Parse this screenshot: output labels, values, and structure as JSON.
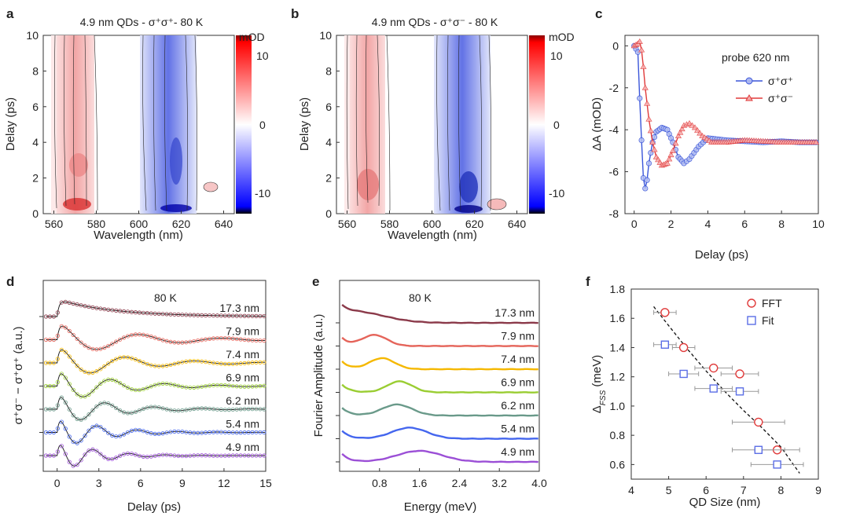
{
  "panels": {
    "a": {
      "letter": "a",
      "title": "4.9 nm QDs - σ⁺σ⁺- 80 K",
      "xlabel": "Wavelength (nm)",
      "ylabel": "Delay (ps)",
      "xticks": [
        "560",
        "580",
        "600",
        "620",
        "640"
      ],
      "yticks": [
        "0",
        "2",
        "4",
        "6",
        "8",
        "10"
      ],
      "colorbar": {
        "unit": "mOD",
        "ticks": [
          "10",
          "0",
          "-10"
        ]
      }
    },
    "b": {
      "letter": "b",
      "title": "4.9 nm QDs - σ⁺σ⁻ - 80 K",
      "xlabel": "Wavelength (nm)",
      "ylabel": "Delay (ps)",
      "xticks": [
        "560",
        "580",
        "600",
        "620",
        "640"
      ],
      "yticks": [
        "0",
        "2",
        "4",
        "6",
        "8",
        "10"
      ],
      "colorbar": {
        "unit": "mOD",
        "ticks": [
          "10",
          "0",
          "-10"
        ]
      }
    },
    "c": {
      "letter": "c",
      "xlabel": "Delay (ps)",
      "ylabel": "ΔA (mOD)",
      "annotation": "probe 620 nm",
      "xticks": [
        "0",
        "2",
        "4",
        "6",
        "8",
        "10"
      ],
      "yticks": [
        "0",
        "-2",
        "-4",
        "-6",
        "-8"
      ],
      "legend": [
        "σ⁺σ⁺",
        "σ⁺σ⁻"
      ]
    },
    "d": {
      "letter": "d",
      "xlabel": "Delay (ps)",
      "ylabel": "σ⁺σ⁻ − σ⁺σ⁺ (a.u.)",
      "annotation": "80 K",
      "xticks": [
        "0",
        "3",
        "6",
        "9",
        "12",
        "15"
      ],
      "sizes": [
        "17.3 nm",
        "7.9 nm",
        "7.4 nm",
        "6.9 nm",
        "6.2 nm",
        "5.4 nm",
        "4.9 nm"
      ]
    },
    "e": {
      "letter": "e",
      "xlabel": "Energy (meV)",
      "ylabel": "Fourier Amplitude (a.u.)",
      "annotation": "80 K",
      "xticks": [
        "0.8",
        "1.6",
        "2.4",
        "3.2",
        "4.0"
      ],
      "sizes": [
        "17.3 nm",
        "7.9 nm",
        "7.4 nm",
        "6.9 nm",
        "6.2 nm",
        "5.4 nm",
        "4.9 nm"
      ]
    },
    "f": {
      "letter": "f",
      "xlabel": "QD Size (nm)",
      "ylabel": "Δ",
      "ylabel_sub": "FSS",
      "ylabel_unit": " (meV)",
      "xticks": [
        "4",
        "5",
        "6",
        "7",
        "8",
        "9"
      ],
      "yticks": [
        "0.6",
        "0.8",
        "1.0",
        "1.2",
        "1.4",
        "1.6",
        "1.8"
      ],
      "legend": [
        "FFT",
        "Fit"
      ]
    }
  },
  "colors": {
    "sigma_pp": "#3a55d9",
    "sigma_pm": "#e03a3a",
    "series": [
      "#8b3a4a",
      "#e5645a",
      "#f5b800",
      "#9acd32",
      "#6a9a8a",
      "#4466ee",
      "#9b4fd6"
    ]
  },
  "chart_data": [
    {
      "type": "heatmap",
      "panel": "a",
      "x_range": [
        555,
        645
      ],
      "y_range": [
        0,
        10
      ],
      "zlim": [
        -14,
        14
      ]
    },
    {
      "type": "heatmap",
      "panel": "b",
      "x_range": [
        555,
        645
      ],
      "y_range": [
        0,
        10
      ],
      "zlim": [
        -14,
        14
      ]
    },
    {
      "type": "line",
      "panel": "c",
      "xlim": [
        -0.5,
        10
      ],
      "ylim": [
        -8,
        0.5
      ],
      "series": [
        {
          "name": "σ⁺σ⁺",
          "x": [
            0,
            0.2,
            0.3,
            0.4,
            0.5,
            0.6,
            0.7,
            0.8,
            1.0,
            1.2,
            1.5,
            1.8,
            2.1,
            2.4,
            2.7,
            3.0,
            3.5,
            4,
            5,
            6,
            7,
            8,
            9,
            10
          ],
          "y": [
            0,
            -0.3,
            -2.5,
            -4.5,
            -6.3,
            -6.8,
            -6.4,
            -5.6,
            -4.6,
            -4.1,
            -3.9,
            -4.0,
            -4.6,
            -5.3,
            -5.6,
            -5.4,
            -4.8,
            -4.4,
            -4.5,
            -4.55,
            -4.6,
            -4.55,
            -4.6,
            -4.6
          ]
        },
        {
          "name": "σ⁺σ⁻",
          "x": [
            0,
            0.2,
            0.3,
            0.4,
            0.5,
            0.6,
            0.8,
            1.0,
            1.2,
            1.5,
            1.8,
            2.1,
            2.4,
            2.7,
            3.0,
            3.3,
            3.7,
            4.2,
            5,
            6,
            7,
            8,
            9,
            10
          ],
          "y": [
            0,
            0.1,
            0.2,
            -0.2,
            -1.0,
            -2.0,
            -3.5,
            -4.6,
            -5.3,
            -5.7,
            -5.6,
            -5.0,
            -4.3,
            -3.8,
            -3.7,
            -3.9,
            -4.3,
            -4.6,
            -4.6,
            -4.5,
            -4.55,
            -4.6,
            -4.6,
            -4.6
          ]
        }
      ]
    },
    {
      "type": "line",
      "panel": "d",
      "xlim": [
        -1,
        15
      ],
      "series": [
        {
          "name": "17.3 nm",
          "offset": 6,
          "amp": 0.3,
          "decay": 3.0,
          "period": 0,
          "phase": 0
        },
        {
          "name": "7.9 nm",
          "offset": 5,
          "amp": 0.45,
          "decay": 5.0,
          "period": 6.0,
          "phase": 0
        },
        {
          "name": "7.4 nm",
          "offset": 4,
          "amp": 0.45,
          "decay": 4.5,
          "period": 5.0,
          "phase": 0
        },
        {
          "name": "6.9 nm",
          "offset": 3,
          "amp": 0.45,
          "decay": 4.0,
          "period": 3.9,
          "phase": 0
        },
        {
          "name": "6.2 nm",
          "offset": 2,
          "amp": 0.45,
          "decay": 3.5,
          "period": 3.5,
          "phase": 0
        },
        {
          "name": "5.4 nm",
          "offset": 1,
          "amp": 0.45,
          "decay": 3.0,
          "period": 2.9,
          "phase": 0
        },
        {
          "name": "4.9 nm",
          "offset": 0,
          "amp": 0.45,
          "decay": 2.5,
          "period": 2.6,
          "phase": 0
        }
      ]
    },
    {
      "type": "line",
      "panel": "e",
      "xlim": [
        0,
        4
      ],
      "series": [
        {
          "name": "17.3 nm",
          "offset": 6,
          "peak": 0.3,
          "width": 0.6
        },
        {
          "name": "7.9 nm",
          "offset": 5,
          "peak": 0.7,
          "width": 0.25
        },
        {
          "name": "7.4 nm",
          "offset": 4,
          "peak": 0.85,
          "width": 0.25
        },
        {
          "name": "6.9 nm",
          "offset": 3,
          "peak": 1.2,
          "width": 0.25
        },
        {
          "name": "6.2 nm",
          "offset": 2,
          "peak": 1.15,
          "width": 0.3
        },
        {
          "name": "5.4 nm",
          "offset": 1,
          "peak": 1.4,
          "width": 0.35
        },
        {
          "name": "4.9 nm",
          "offset": 0,
          "peak": 1.6,
          "width": 0.45
        }
      ]
    },
    {
      "type": "scatter",
      "panel": "f",
      "xlim": [
        4,
        9
      ],
      "ylim": [
        0.5,
        1.8
      ],
      "series": [
        {
          "name": "FFT",
          "x": [
            4.9,
            5.4,
            6.2,
            6.9,
            7.4,
            7.9
          ],
          "y": [
            1.64,
            1.4,
            1.26,
            1.22,
            0.89,
            0.7
          ],
          "xerr": [
            0.3,
            0.3,
            0.5,
            0.5,
            0.7,
            0.6
          ]
        },
        {
          "name": "Fit",
          "x": [
            4.9,
            5.4,
            6.2,
            6.9,
            7.4,
            7.9
          ],
          "y": [
            1.42,
            1.22,
            1.12,
            1.1,
            0.7,
            0.6
          ],
          "xerr": [
            0.3,
            0.4,
            0.5,
            0.5,
            0.7,
            0.7
          ]
        }
      ],
      "fit": {
        "x": [
          4.6,
          5.0,
          5.5,
          6.0,
          6.5,
          7.0,
          7.5,
          8.0,
          8.5
        ],
        "y": [
          1.68,
          1.55,
          1.39,
          1.24,
          1.1,
          0.97,
          0.85,
          0.72,
          0.54
        ]
      }
    }
  ]
}
